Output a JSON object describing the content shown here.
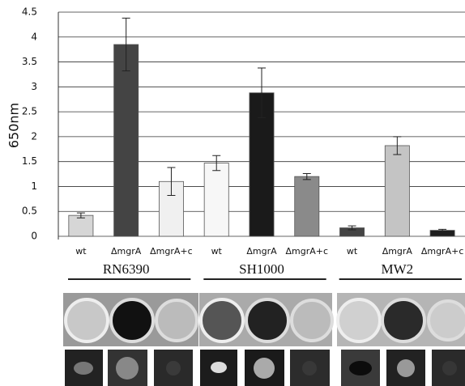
{
  "chart_data": {
    "type": "bar",
    "y_label": "650nm",
    "categories": [
      "wt",
      "ΔmgrA",
      "ΔmgrA+c",
      "wt",
      "ΔmgrA",
      "ΔmgrA+c",
      "wt",
      "ΔmgrA",
      "ΔmgrA+c"
    ],
    "values": [
      0.42,
      3.85,
      1.1,
      1.47,
      2.88,
      1.2,
      0.17,
      1.82,
      0.12
    ],
    "errors": [
      0.05,
      0.53,
      0.28,
      0.15,
      0.5,
      0.06,
      0.04,
      0.18,
      0.02
    ],
    "colors": [
      "#d6d6d6",
      "#444444",
      "#f0f0f0",
      "#f7f7f7",
      "#1a1a1a",
      "#8a8a8a",
      "#444444",
      "#c4c4c4",
      "#1e1e1e"
    ],
    "groups": [
      "RN6390",
      "SH1000",
      "MW2"
    ],
    "ylim": [
      0,
      4.5
    ],
    "yticks": [
      0,
      0.5,
      1,
      1.5,
      2,
      2.5,
      3,
      3.5,
      4,
      4.5
    ],
    "grid": true
  }
}
